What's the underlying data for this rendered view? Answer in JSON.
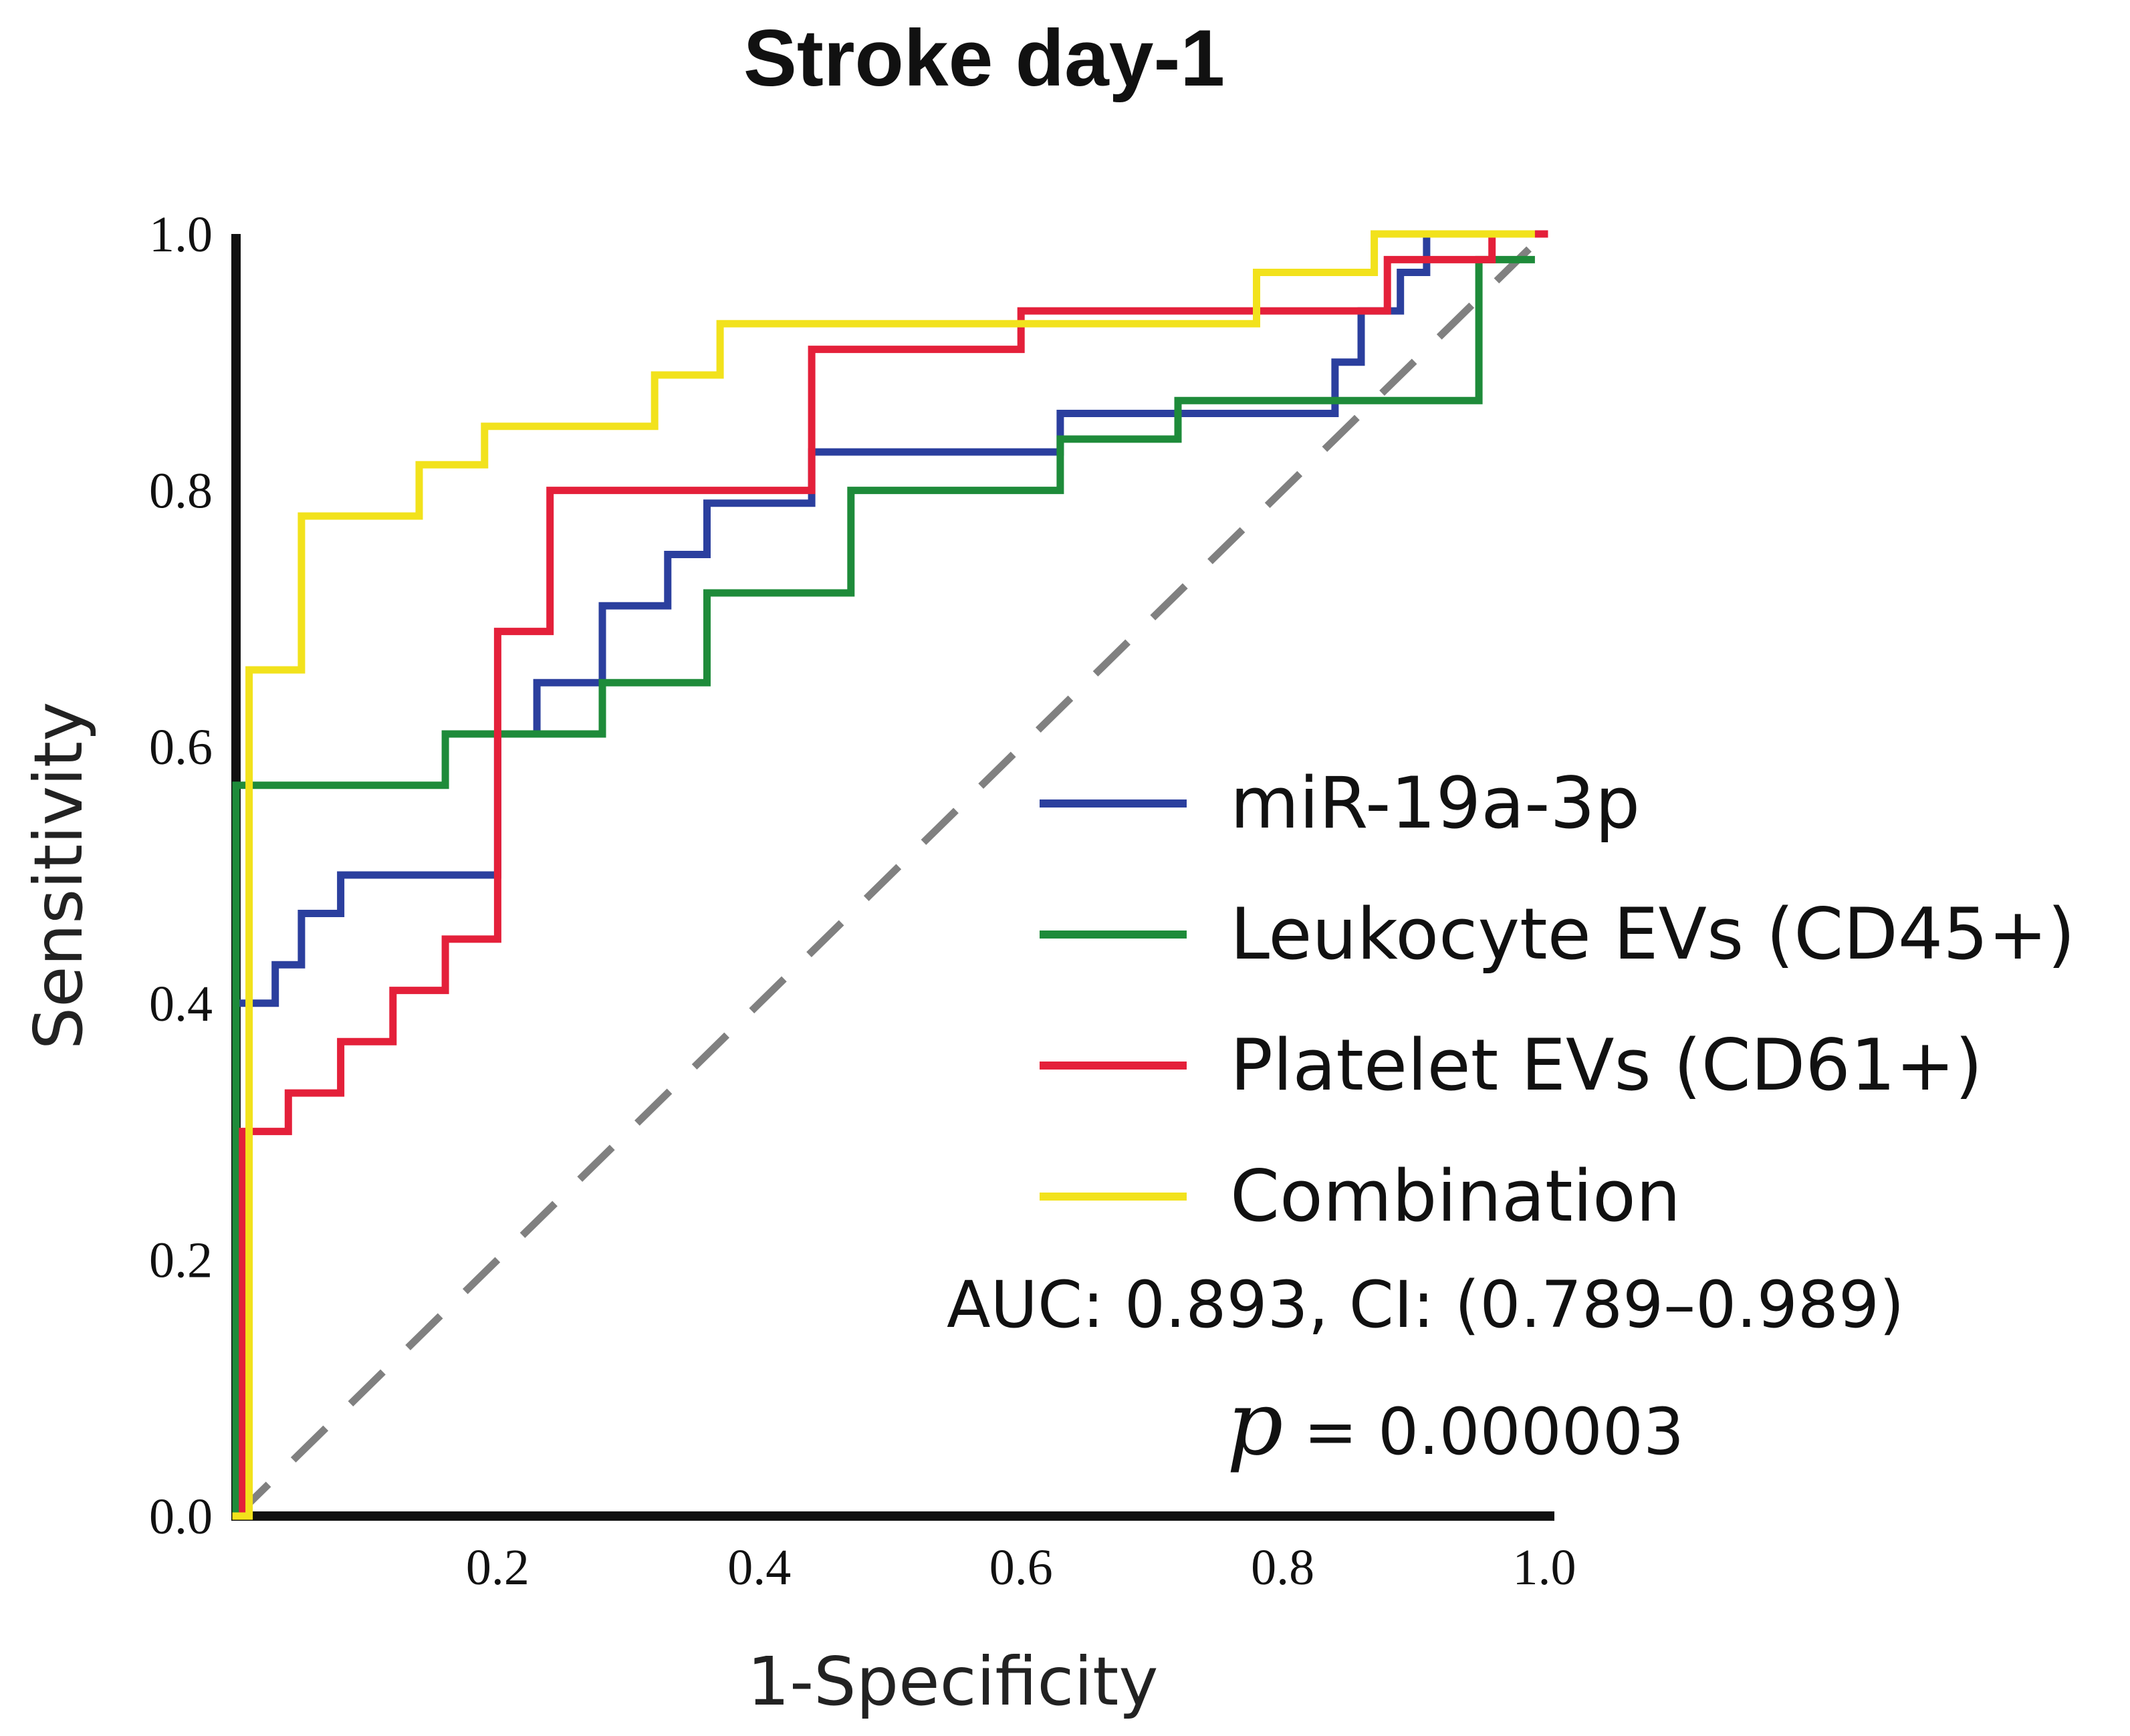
{
  "chart_data": {
    "type": "line",
    "title": "Stroke day-1",
    "xlabel": "1-Specificity",
    "ylabel": "Sensitivity",
    "xlim": [
      0,
      1.0
    ],
    "ylim": [
      0,
      1.0
    ],
    "x_ticks": [
      "0.2",
      "0.4",
      "0.6",
      "0.8",
      "1.0"
    ],
    "y_ticks": [
      "0.0",
      "0.2",
      "0.4",
      "0.6",
      "0.8",
      "1.0"
    ],
    "grid": false,
    "legend_position": "right",
    "reference_line": {
      "name": "chance",
      "style": "dashed",
      "color": "#808080",
      "x": [
        0,
        1
      ],
      "y": [
        0,
        1
      ]
    },
    "series": [
      {
        "name": "miR-19a-3p",
        "color": "#2b3f9e",
        "x": [
          0,
          0,
          0.03,
          0.03,
          0.05,
          0.05,
          0.08,
          0.08,
          0.2,
          0.2,
          0.23,
          0.23,
          0.28,
          0.28,
          0.33,
          0.33,
          0.36,
          0.36,
          0.44,
          0.44,
          0.63,
          0.63,
          0.84,
          0.84,
          0.86,
          0.86,
          0.89,
          0.89,
          0.91,
          0.91,
          0.95,
          0.99
        ],
        "y": [
          0,
          0.4,
          0.4,
          0.43,
          0.43,
          0.47,
          0.47,
          0.5,
          0.5,
          0.61,
          0.61,
          0.65,
          0.65,
          0.71,
          0.71,
          0.75,
          0.75,
          0.79,
          0.79,
          0.83,
          0.83,
          0.86,
          0.86,
          0.9,
          0.9,
          0.94,
          0.94,
          0.97,
          0.97,
          1.0,
          1.0,
          1.0
        ]
      },
      {
        "name": "Leukocyte EVs (CD45+)",
        "color": "#1e8b3a",
        "x": [
          0,
          0,
          0.16,
          0.16,
          0.28,
          0.28,
          0.36,
          0.36,
          0.47,
          0.47,
          0.63,
          0.63,
          0.72,
          0.72,
          0.95,
          0.95,
          0.99
        ],
        "y": [
          0,
          0.57,
          0.57,
          0.61,
          0.61,
          0.65,
          0.65,
          0.72,
          0.72,
          0.8,
          0.8,
          0.84,
          0.84,
          0.87,
          0.87,
          0.98,
          0.98
        ]
      },
      {
        "name": "Platelet EVs (CD61+)",
        "color": "#e4203a",
        "x": [
          0,
          0.005,
          0.005,
          0.04,
          0.04,
          0.08,
          0.08,
          0.12,
          0.12,
          0.16,
          0.16,
          0.2,
          0.2,
          0.24,
          0.24,
          0.44,
          0.44,
          0.6,
          0.6,
          0.88,
          0.88,
          0.96,
          0.96,
          1.0
        ],
        "y": [
          0,
          0,
          0.3,
          0.3,
          0.33,
          0.33,
          0.37,
          0.37,
          0.41,
          0.41,
          0.45,
          0.45,
          0.69,
          0.69,
          0.8,
          0.8,
          0.91,
          0.91,
          0.94,
          0.94,
          0.98,
          0.98,
          1.0,
          1.0
        ]
      },
      {
        "name": "Combination",
        "color": "#f2e21c",
        "x": [
          0,
          0.01,
          0.01,
          0.05,
          0.05,
          0.14,
          0.14,
          0.19,
          0.19,
          0.32,
          0.32,
          0.37,
          0.37,
          0.78,
          0.78,
          0.87,
          0.87,
          0.99
        ],
        "y": [
          0,
          0,
          0.66,
          0.66,
          0.78,
          0.78,
          0.82,
          0.82,
          0.85,
          0.85,
          0.89,
          0.89,
          0.93,
          0.93,
          0.97,
          0.97,
          1.0,
          1.0
        ]
      }
    ],
    "annotations": {
      "stat_line": "AUC: 0.893, CI: (0.789–0.989)",
      "p_symbol": "p",
      "p_value": "= 0.000003"
    }
  },
  "colors": {
    "axis": "#111111",
    "reference": "#808080"
  }
}
